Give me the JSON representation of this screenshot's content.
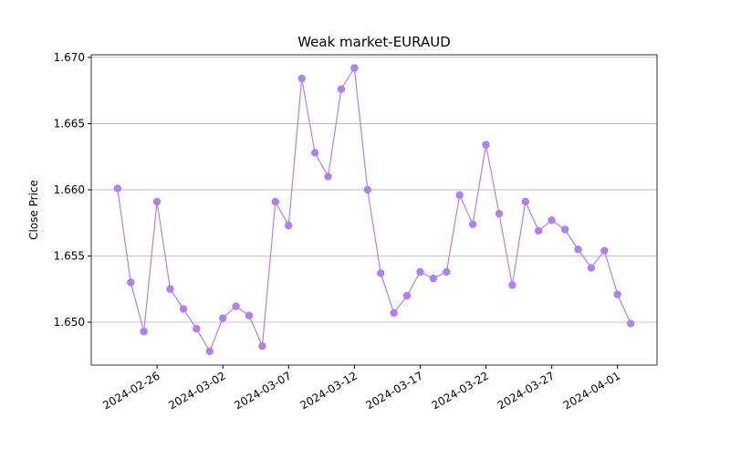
{
  "chart_data": {
    "type": "line",
    "title": "Weak market-EURAUD",
    "y_label": "Close Price",
    "x": [
      "2024-02-23",
      "2024-02-24",
      "2024-02-25",
      "2024-02-26",
      "2024-02-27",
      "2024-02-28",
      "2024-02-29",
      "2024-03-01",
      "2024-03-02",
      "2024-03-03",
      "2024-03-04",
      "2024-03-05",
      "2024-03-06",
      "2024-03-07",
      "2024-03-08",
      "2024-03-09",
      "2024-03-10",
      "2024-03-11",
      "2024-03-12",
      "2024-03-13",
      "2024-03-14",
      "2024-03-15",
      "2024-03-16",
      "2024-03-17",
      "2024-03-18",
      "2024-03-19",
      "2024-03-20",
      "2024-03-21",
      "2024-03-22",
      "2024-03-23",
      "2024-03-24",
      "2024-03-25",
      "2024-03-26",
      "2024-03-27",
      "2024-03-28",
      "2024-03-29",
      "2024-03-30",
      "2024-03-31",
      "2024-04-01",
      "2024-04-02"
    ],
    "series": [
      {
        "color": "#b27ff0",
        "values": [
          1.6601,
          1.653,
          1.6493,
          1.6591,
          1.6525,
          1.651,
          1.6495,
          1.6478,
          1.6503,
          1.6512,
          1.6505,
          1.6482,
          1.6591,
          1.6573,
          1.6684,
          1.6628,
          1.661,
          1.6676,
          1.6692,
          1.66,
          1.6537,
          1.6507,
          1.652,
          1.6538,
          1.6533,
          1.6538,
          1.6596,
          1.6574,
          1.6634,
          1.6582,
          1.6528,
          1.6591,
          1.6569,
          1.6577,
          1.657,
          1.6555,
          1.6541,
          1.6554,
          1.6521,
          1.6499
        ]
      }
    ],
    "xlim": [
      "2024-02-21",
      "2024-04-04"
    ],
    "xticks": [
      "2024-02-26",
      "2024-03-02",
      "2024-03-07",
      "2024-03-12",
      "2024-03-17",
      "2024-03-22",
      "2024-03-27",
      "2024-04-01"
    ],
    "ylim": [
      1.64676,
      1.6702
    ],
    "yticks": [
      {
        "value": 1.65,
        "label": "1.650"
      },
      1.655,
      {
        "value": 1.66,
        "label": "1.660"
      },
      1.665,
      {
        "value": 1.67,
        "label": "1.670"
      }
    ],
    "grid": "y"
  }
}
